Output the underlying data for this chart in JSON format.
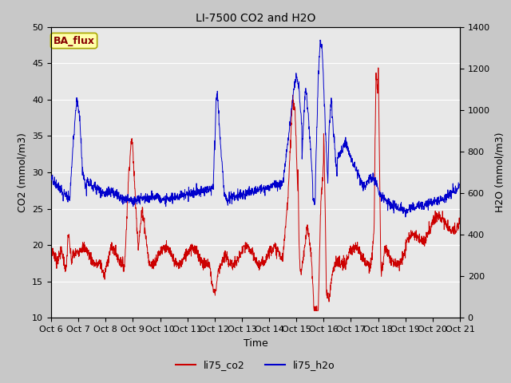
{
  "title": "LI-7500 CO2 and H2O",
  "xlabel": "Time",
  "ylabel_left": "CO2 (mmol/m3)",
  "ylabel_right": "H2O (mmol/m3)",
  "xlim": [
    0,
    15
  ],
  "ylim_left": [
    10,
    50
  ],
  "ylim_right": [
    0,
    1400
  ],
  "xtick_labels": [
    "Oct 6",
    "Oct 7",
    "Oct 8",
    "Oct 9",
    "Oct 10",
    "Oct 11",
    "Oct 12",
    "Oct 13",
    "Oct 14",
    "Oct 15",
    "Oct 16",
    "Oct 17",
    "Oct 18",
    "Oct 19",
    "Oct 20",
    "Oct 21"
  ],
  "xtick_positions": [
    0,
    1,
    2,
    3,
    4,
    5,
    6,
    7,
    8,
    9,
    10,
    11,
    12,
    13,
    14,
    15
  ],
  "co2_color": "#cc0000",
  "h2o_color": "#0000cc",
  "fig_facecolor": "#c8c8c8",
  "plot_facecolor": "#e8e8e8",
  "annotation_text": "BA_flux",
  "annotation_bg": "#ffffaa",
  "annotation_border": "#aaa800",
  "legend_co2": "li75_co2",
  "legend_h2o": "li75_h2o",
  "title_fontsize": 10,
  "axis_fontsize": 9,
  "tick_fontsize": 8
}
